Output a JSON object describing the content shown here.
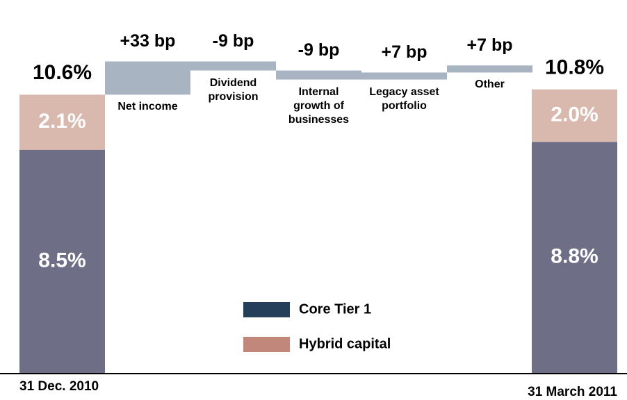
{
  "chart_data": {
    "type": "waterfall",
    "dates": [
      "31 Dec. 2010",
      "31 March 2011"
    ],
    "totals": [
      10.6,
      10.8
    ],
    "total_labels": [
      "10.6%",
      "10.8%"
    ],
    "series": [
      {
        "name": "Core Tier 1",
        "color": "#6e6e87",
        "legend_color": "#253f5a",
        "values": [
          8.5,
          8.8
        ],
        "value_labels": [
          "8.5%",
          "8.8%"
        ]
      },
      {
        "name": "Hybrid capital",
        "color": "#d9b8ae",
        "legend_color": "#c0877a",
        "values": [
          2.1,
          2.0
        ],
        "value_labels": [
          "2.1%",
          "2.0%"
        ]
      }
    ],
    "steps": {
      "categories": [
        "Net income",
        "Dividend provision",
        "Internal growth of businesses",
        "Legacy asset portfolio",
        "Other"
      ],
      "values": [
        33,
        -9,
        -9,
        7,
        7
      ],
      "value_labels": [
        "+33 bp",
        "-9 bp",
        "-9 bp",
        "+7 bp",
        "+7 bp"
      ],
      "color": "#a9b4c2"
    }
  }
}
